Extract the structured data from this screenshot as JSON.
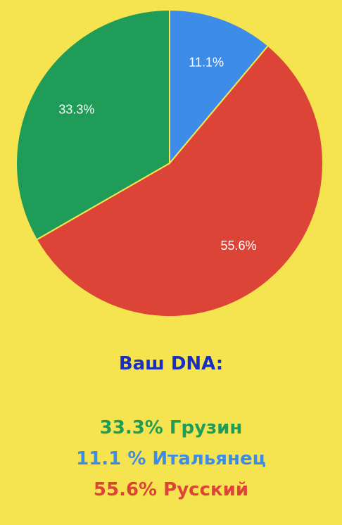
{
  "chart_data": {
    "type": "pie",
    "slices": [
      {
        "label": "Итальянец",
        "value": 11.1,
        "value_label": "11.1%",
        "color": "#3d8ce8"
      },
      {
        "label": "Русский",
        "value": 55.6,
        "value_label": "55.6%",
        "color": "#dc4437"
      },
      {
        "label": "Грузин",
        "value": 33.3,
        "value_label": "33.3%",
        "color": "#1f9d58"
      }
    ],
    "start_angle_deg": 0,
    "direction": "clockwise"
  },
  "result": {
    "heading": "Ваш DNA:",
    "lines": [
      {
        "text": "33.3% Грузин",
        "color": "#1f9d58"
      },
      {
        "text": "11.1 % Итальянец",
        "color": "#3d8ce8"
      },
      {
        "text": "55.6% Русский",
        "color": "#dc4437"
      }
    ]
  },
  "colors": {
    "background": "#f5e44f",
    "heading": "#1a2fbf"
  }
}
